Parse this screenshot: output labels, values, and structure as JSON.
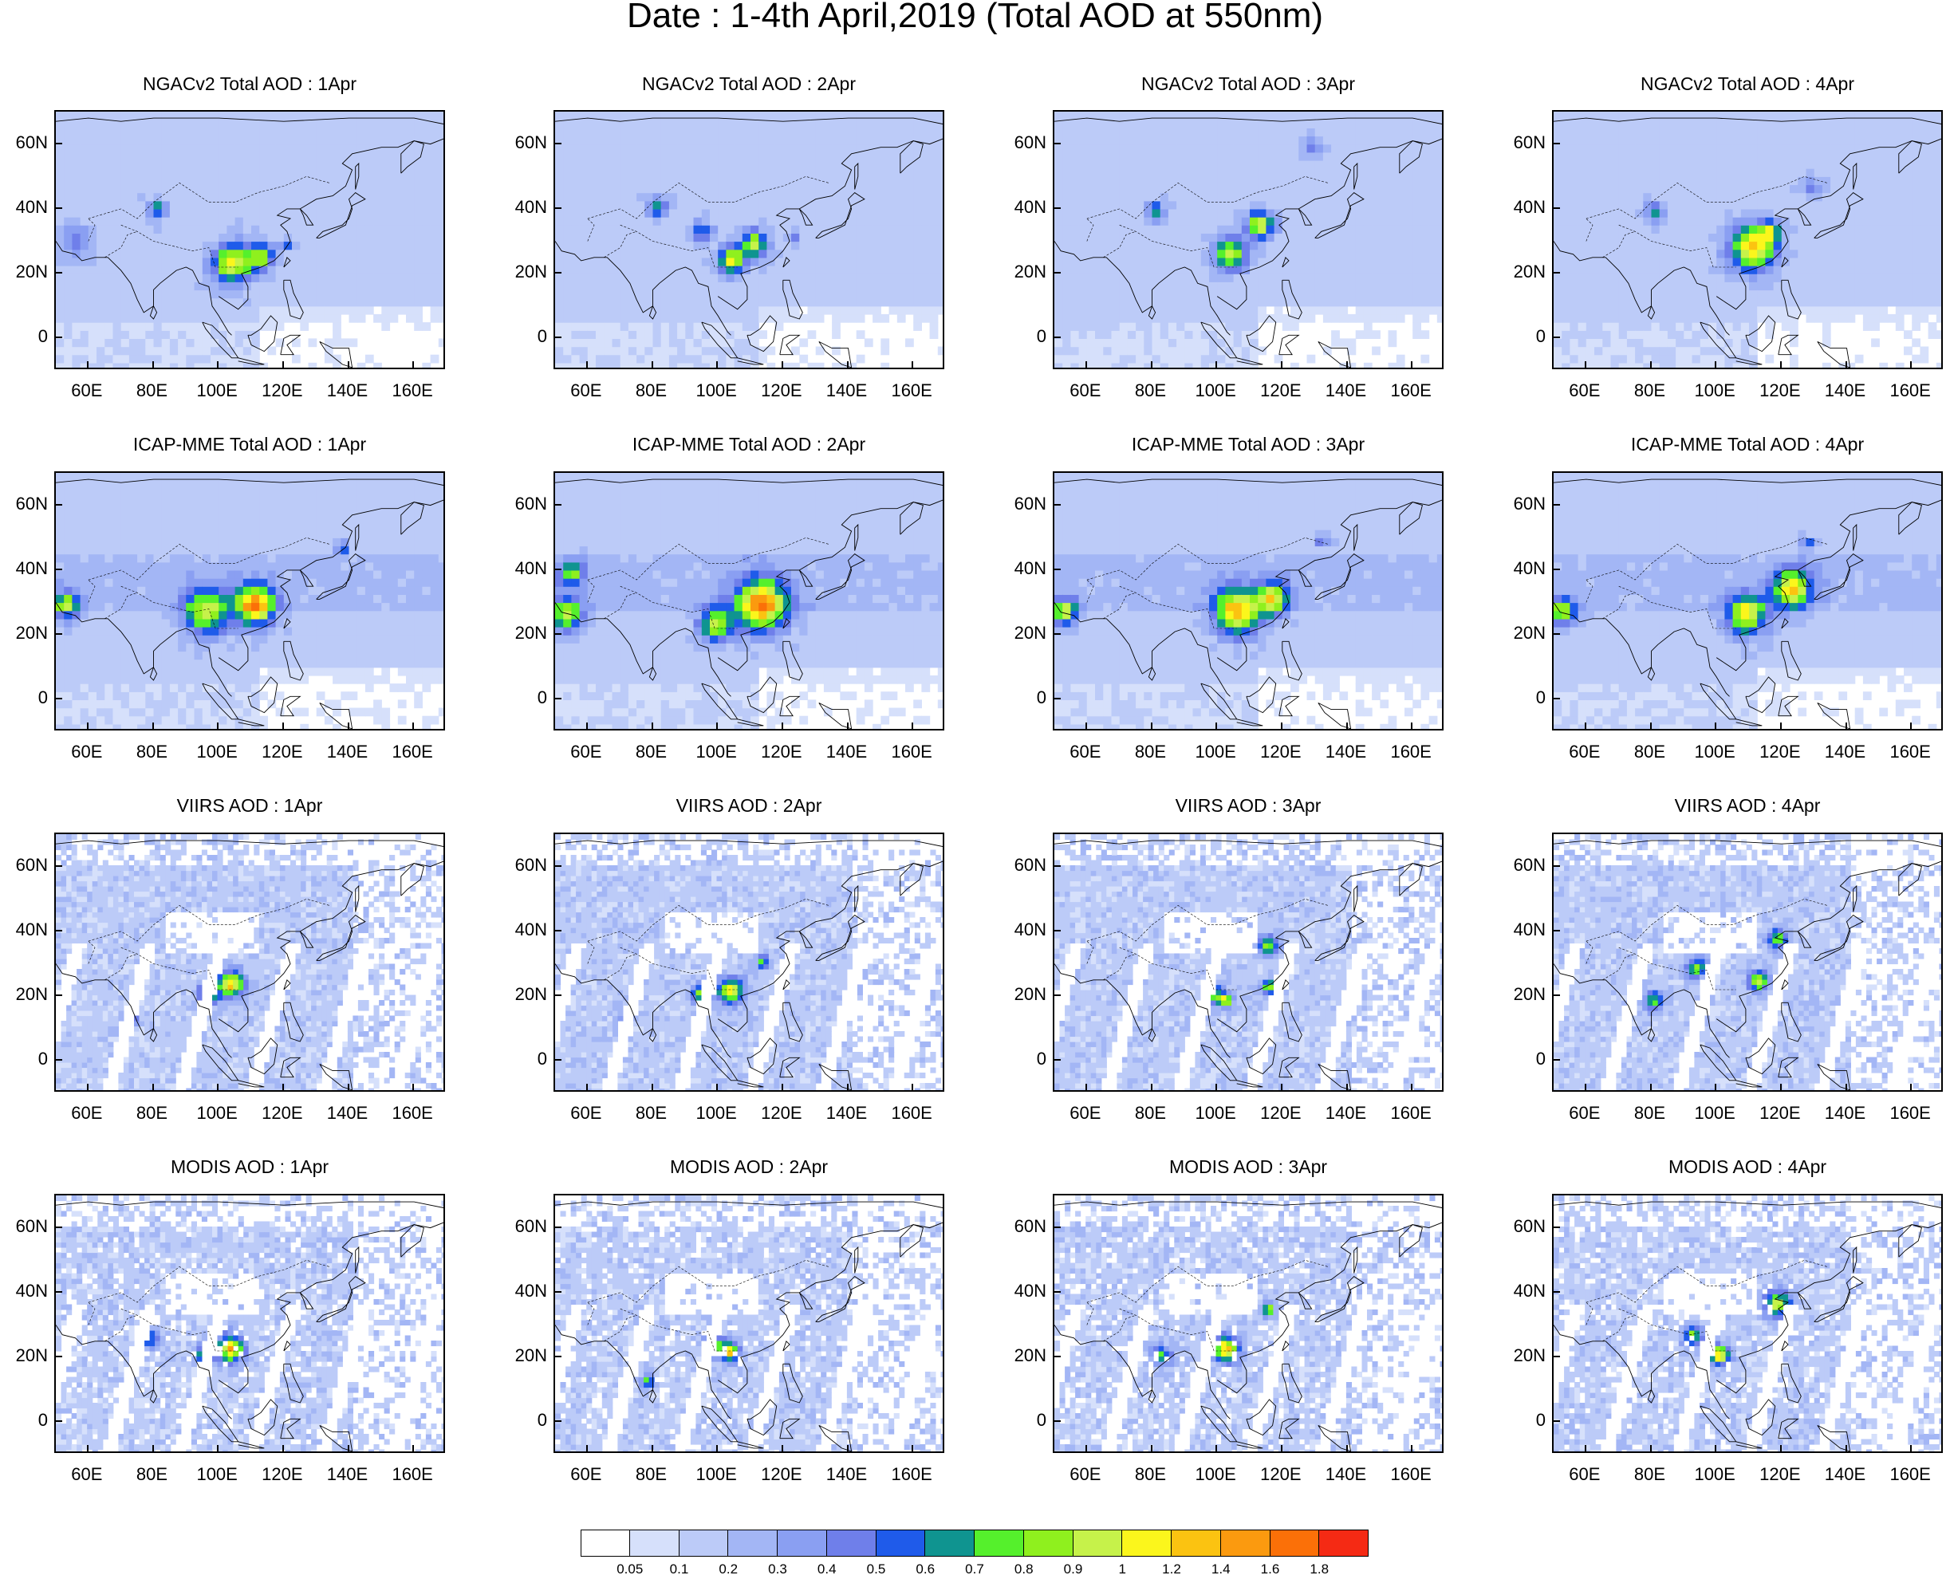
{
  "title": "Date : 1-4th April,2019 (Total AOD at 550nm)",
  "panels": [
    [
      "NGACv2 Total AOD : 1Apr",
      "NGACv2 Total AOD : 2Apr",
      "NGACv2 Total AOD : 3Apr",
      "NGACv2 Total AOD : 4Apr"
    ],
    [
      "ICAP-MME Total AOD : 1Apr",
      "ICAP-MME Total AOD : 2Apr",
      "ICAP-MME Total AOD : 3Apr",
      "ICAP-MME Total AOD : 4Apr"
    ],
    [
      "VIIRS AOD : 1Apr",
      "VIIRS AOD : 2Apr",
      "VIIRS AOD : 3Apr",
      "VIIRS AOD : 4Apr"
    ],
    [
      "MODIS AOD : 1Apr",
      "MODIS AOD : 2Apr",
      "MODIS AOD : 3Apr",
      "MODIS AOD : 4Apr"
    ]
  ],
  "map": {
    "lon_range": [
      50,
      170
    ],
    "lat_range": [
      -10,
      70
    ],
    "lon_ticks": [
      "60E",
      "80E",
      "100E",
      "120E",
      "140E",
      "160E"
    ],
    "lat_ticks": [
      "60N",
      "40N",
      "20N",
      "0"
    ]
  },
  "colorbar": {
    "labels": [
      "0.05",
      "0.1",
      "0.2",
      "0.3",
      "0.4",
      "0.5",
      "0.6",
      "0.7",
      "0.8",
      "0.9",
      "1",
      "1.2",
      "1.4",
      "1.6",
      "1.8"
    ],
    "colors": [
      "#ffffff",
      "#d6e0fb",
      "#bccbf8",
      "#a3b6f5",
      "#8a9ff2",
      "#6f7fea",
      "#1f5bea",
      "#0f9490",
      "#55f02c",
      "#8ff01e",
      "#c6f24a",
      "#fbf61c",
      "#fbc311",
      "#fb9a0f",
      "#fb7008",
      "#f52a14"
    ]
  }
}
